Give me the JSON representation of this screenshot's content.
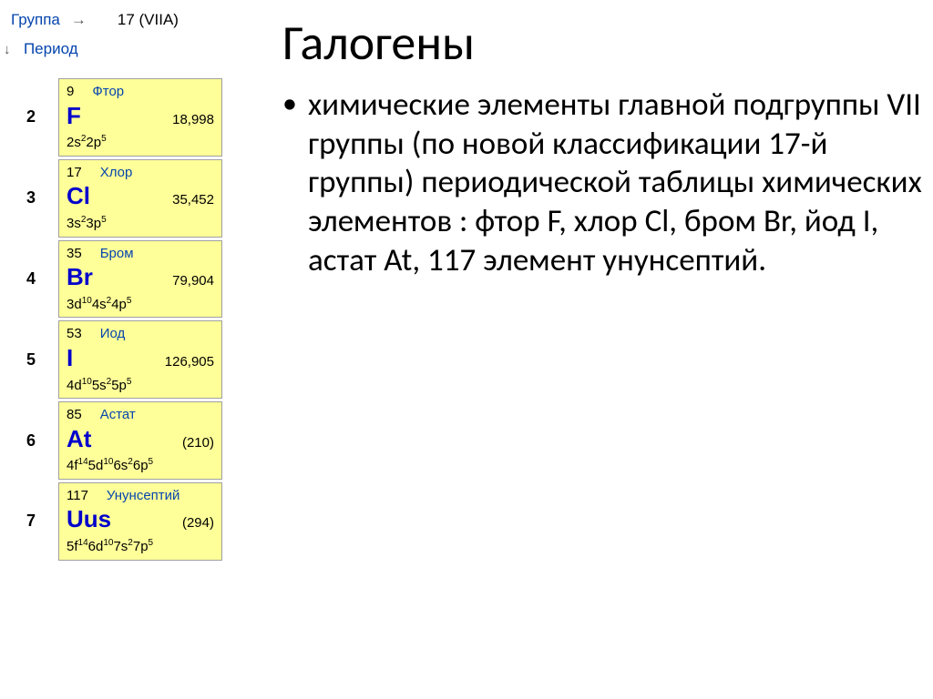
{
  "header": {
    "group_label": "Группа",
    "group_value": "17 (VIIA)",
    "period_label": "Период"
  },
  "title": "Галогены",
  "body_text": "химические элементы главной подгруппы VII группы (по новой классификации 17-й группы) периодической таблицы химических элементов : фтор F, хлор Cl, бром Br, йод I, астат At, 117 элемент унунсептий.",
  "colors": {
    "link": "#0645ad",
    "cell_bg": "#ffff99",
    "cell_border": "#a0a0a0",
    "symbol": "#0000cc",
    "text": "#000000"
  },
  "elements": [
    {
      "period": "2",
      "num": "9",
      "name": "Фтор",
      "symbol": "F",
      "mass": "18,998",
      "config_html": "2s<sup>2</sup>2p<sup>5</sup>"
    },
    {
      "period": "3",
      "num": "17",
      "name": "Хлор",
      "symbol": "Cl",
      "mass": "35,452",
      "config_html": "3s<sup>2</sup>3p<sup>5</sup>"
    },
    {
      "period": "4",
      "num": "35",
      "name": "Бром",
      "symbol": "Br",
      "mass": "79,904",
      "config_html": "3d<sup>10</sup>4s<sup>2</sup>4p<sup>5</sup>"
    },
    {
      "period": "5",
      "num": "53",
      "name": "Иод",
      "symbol": "I",
      "mass": "126,905",
      "config_html": "4d<sup>10</sup>5s<sup>2</sup>5p<sup>5</sup>"
    },
    {
      "period": "6",
      "num": "85",
      "name": "Астат",
      "symbol": "At",
      "mass": "(210)",
      "config_html": "4f<sup>14</sup>5d<sup>10</sup>6s<sup>2</sup>6p<sup>5</sup>"
    },
    {
      "period": "7",
      "num": "117",
      "name": "Унунсептий",
      "symbol": "Uus",
      "mass": "(294)",
      "config_html": "5f<sup>14</sup>6d<sup>10</sup>7s<sup>2</sup>7p<sup>5</sup>"
    }
  ]
}
